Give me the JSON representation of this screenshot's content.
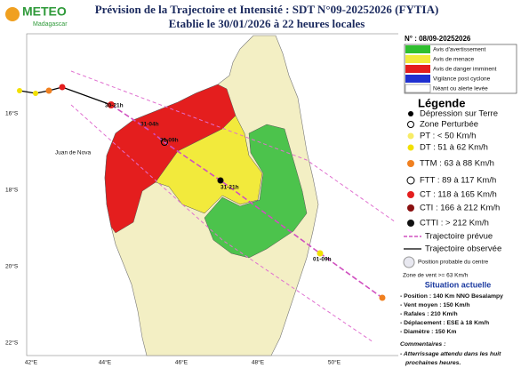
{
  "header": {
    "logo": "METEO",
    "logo_sub": "Madagascar",
    "title": "Prévision de la Trajectoire et Intensité : SDT N°09-20252026 (FYTIA)",
    "subtitle": "Etablie le 30/01/2026 à 22 heures locales"
  },
  "bulletin_number": "N° : 08/09-20252026",
  "alerts": [
    "Avis d'avertissement",
    "Avis de menace",
    "Avis de danger imminent",
    "Vigilance post cyclone",
    "Néant ou alerte levée"
  ],
  "legend": {
    "title": "Légende",
    "items": [
      "Dépression sur Terre",
      "Zone Perturbée",
      "PT : < 50 Km/h",
      "DT : 51 à 62 Km/h",
      "TTM : 63 à 88 Km/h",
      "FTT : 89 à 117 Km/h",
      "CT : 118 à 165 Km/h",
      "CTI : 166 à 212 Km/h",
      "CTTI : > 212 Km/h",
      "Trajectoire prévue",
      "Trajectoire observée"
    ],
    "cone": "Position probable du centre",
    "wind_zone": "Zone de vent >= 63 Km/h"
  },
  "situation": {
    "title": "Situation actuelle",
    "lines": [
      "- Position : 140 Km NNO Besalampy",
      "- Vent moyen : 150 Km/h",
      "- Rafales : 210 Km/h",
      "- Déplacement : ESE à 18 Km/h",
      "- Diamètre : 150 Km"
    ]
  },
  "comments": {
    "title": "Commentaires :",
    "lines": [
      "- Atterrissage attendu dans les huit",
      "prochaines heures."
    ]
  },
  "map": {
    "latitudes": [
      "16°S",
      "18°S",
      "20°S",
      "22°S"
    ],
    "longitudes": [
      "42°E",
      "44°E",
      "46°E",
      "48°E",
      "50°E"
    ],
    "track_labels": [
      "30-21h",
      "31-04h",
      "31-09h",
      "31-21h",
      "01-09h"
    ],
    "places": [
      "Juan de Nova"
    ]
  }
}
